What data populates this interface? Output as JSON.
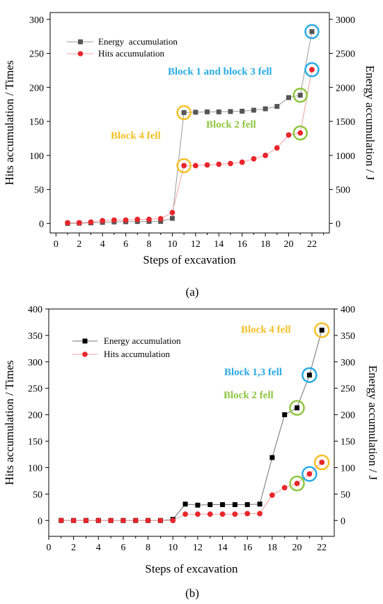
{
  "chart_data": [
    {
      "panel_label": "(a)",
      "type": "line",
      "xlabel": "Steps of excavation",
      "ylabel_left": "Hits accumulation / Times",
      "ylabel_right": "Energy accumulation / J",
      "x_ticks": [
        "0",
        "2",
        "4",
        "6",
        "8",
        "10",
        "12",
        "14",
        "16",
        "18",
        "20",
        "22"
      ],
      "y_left_ticks": [
        "0",
        "50",
        "100",
        "150",
        "200",
        "250",
        "300"
      ],
      "y_right_ticks": [
        "0",
        "500",
        "1000",
        "1500",
        "2000",
        "2500",
        "3000"
      ],
      "xlim": [
        -0.5,
        23.5
      ],
      "ylim_left": [
        -14,
        310
      ],
      "ylim_right": [
        -140,
        3100
      ],
      "legend_position": "top-left",
      "x": [
        1,
        2,
        3,
        4,
        5,
        6,
        7,
        8,
        9,
        10,
        11,
        12,
        13,
        14,
        15,
        16,
        17,
        18,
        19,
        20,
        21,
        22
      ],
      "series": [
        {
          "name": "Energy  accumulation",
          "axis": "right",
          "marker": "square",
          "color": "#555555",
          "line_color": "#9a9a9a",
          "values": [
            0,
            3,
            8,
            15,
            22,
            25,
            28,
            30,
            30,
            75,
            1630,
            1635,
            1640,
            1640,
            1645,
            1650,
            1665,
            1685,
            1720,
            1850,
            1885,
            2820
          ]
        },
        {
          "name": "Hits accumulation",
          "axis": "left",
          "marker": "circle",
          "color": "#e8262b",
          "line_color": "#f0a0a0",
          "values": [
            1,
            1,
            2,
            4,
            5,
            5,
            6,
            6,
            7,
            16,
            85,
            85,
            86,
            87,
            88,
            90,
            95,
            100,
            111,
            130,
            133,
            226
          ]
        }
      ],
      "annotations": [
        {
          "text": "Block 4 fell",
          "color": "#f5c028"
        },
        {
          "text": "Block 2 fell",
          "color": "#8dc63f"
        },
        {
          "text": "Block 1 and block 3 fell",
          "color": "#29abe2"
        }
      ],
      "highlight_circles": [
        {
          "x": 11,
          "series": "Energy  accumulation",
          "color": "#f5c028"
        },
        {
          "x": 11,
          "series": "Hits accumulation",
          "color": "#f5c028"
        },
        {
          "x": 21,
          "series": "Energy  accumulation",
          "color": "#8dc63f"
        },
        {
          "x": 21,
          "series": "Hits accumulation",
          "color": "#8dc63f"
        },
        {
          "x": 22,
          "series": "Energy  accumulation",
          "color": "#29abe2"
        },
        {
          "x": 22,
          "series": "Hits accumulation",
          "color": "#29abe2"
        }
      ]
    },
    {
      "panel_label": "(b)",
      "type": "line",
      "xlabel": "Steps of excavation",
      "ylabel_left": "Hits accumulation / Times",
      "ylabel_right": "Energy accumulation / J",
      "x_ticks": [
        "0",
        "2",
        "4",
        "6",
        "8",
        "10",
        "12",
        "14",
        "16",
        "18",
        "20",
        "22"
      ],
      "y_left_ticks": [
        "0",
        "50",
        "100",
        "150",
        "200",
        "250",
        "300",
        "350",
        "400"
      ],
      "y_right_ticks": [
        "0",
        "50",
        "100",
        "150",
        "200",
        "250",
        "300",
        "350",
        "400"
      ],
      "xlim": [
        0,
        23
      ],
      "ylim_left": [
        -30,
        400
      ],
      "ylim_right": [
        -30,
        400
      ],
      "legend_position": "top-left",
      "x": [
        1,
        2,
        3,
        4,
        5,
        6,
        7,
        8,
        9,
        10,
        11,
        12,
        13,
        14,
        15,
        16,
        17,
        18,
        19,
        20,
        21,
        22
      ],
      "series": [
        {
          "name": "Energy accumulation",
          "axis": "right",
          "marker": "square",
          "color": "#000000",
          "line_color": "#707070",
          "values": [
            0,
            0,
            0,
            0,
            0,
            0,
            0,
            0,
            0,
            2,
            31,
            29,
            30,
            30,
            30,
            30,
            31,
            119,
            200,
            213,
            275,
            360
          ]
        },
        {
          "name": "Hits accumulation",
          "axis": "left",
          "marker": "circle",
          "color": "#e8262b",
          "line_color": "#f0a0a0",
          "values": [
            0,
            0,
            0,
            0,
            0,
            0,
            0,
            0,
            0,
            0,
            12,
            12,
            12,
            12,
            12,
            13,
            13,
            48,
            62,
            70,
            88,
            110
          ]
        }
      ],
      "annotations": [
        {
          "text": "Block 4 fell",
          "color": "#f5c028"
        },
        {
          "text": "Block 1,3 fell",
          "color": "#29abe2"
        },
        {
          "text": "Block 2 fell",
          "color": "#8dc63f"
        }
      ],
      "highlight_circles": [
        {
          "x": 22,
          "series": "Energy accumulation",
          "color": "#f5c028"
        },
        {
          "x": 22,
          "series": "Hits accumulation",
          "color": "#f5c028"
        },
        {
          "x": 21,
          "series": "Energy accumulation",
          "color": "#29abe2"
        },
        {
          "x": 21,
          "series": "Hits accumulation",
          "color": "#29abe2"
        },
        {
          "x": 20,
          "series": "Energy accumulation",
          "color": "#8dc63f"
        },
        {
          "x": 20,
          "series": "Hits accumulation",
          "color": "#8dc63f"
        }
      ]
    }
  ]
}
